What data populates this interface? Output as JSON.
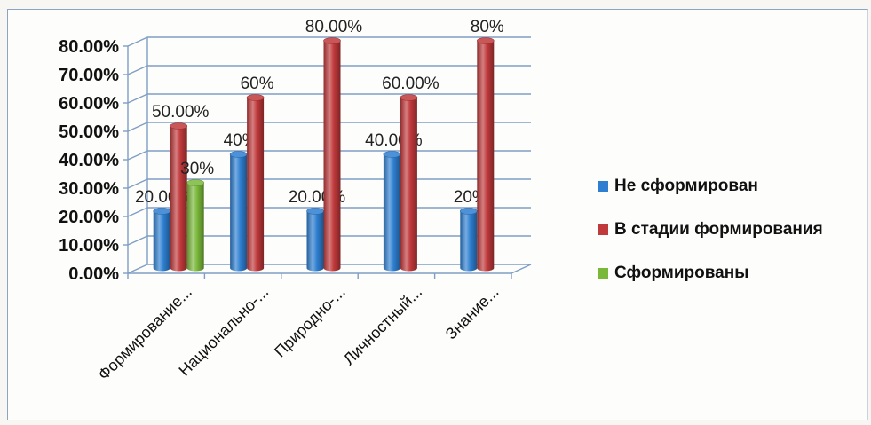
{
  "chart_data": {
    "type": "bar",
    "categories": [
      "Формирование...",
      "Национально-...",
      "Природно-...",
      "Личностный...",
      "Знание..."
    ],
    "series": [
      {
        "name": "Не сформирован",
        "color": "#2e7fd1",
        "values": [
          0.2,
          0.4,
          0.2,
          0.4,
          0.2
        ]
      },
      {
        "name": "В стадии формирования",
        "color": "#c0393b",
        "values": [
          0.5,
          0.6,
          0.8,
          0.6,
          0.8
        ]
      },
      {
        "name": "Сформированы",
        "color": "#7ab83a",
        "values": [
          0.3,
          null,
          null,
          null,
          null
        ]
      }
    ],
    "data_labels": [
      [
        "20.00%",
        "40%",
        "20.00%",
        "40.00%",
        "20%"
      ],
      [
        "50.00%",
        "60%",
        "80.00%",
        "60.00%",
        "80%"
      ],
      [
        "30%",
        null,
        null,
        null,
        null
      ]
    ],
    "ylim": [
      0,
      0.8
    ],
    "yticks": [
      "0.00%",
      "10.00%",
      "20.00%",
      "30.00%",
      "40.00%",
      "50.00%",
      "60.00%",
      "70.00%",
      "80.00%"
    ],
    "grid": true,
    "legend_position": "right",
    "style": "3d-cylinder"
  }
}
